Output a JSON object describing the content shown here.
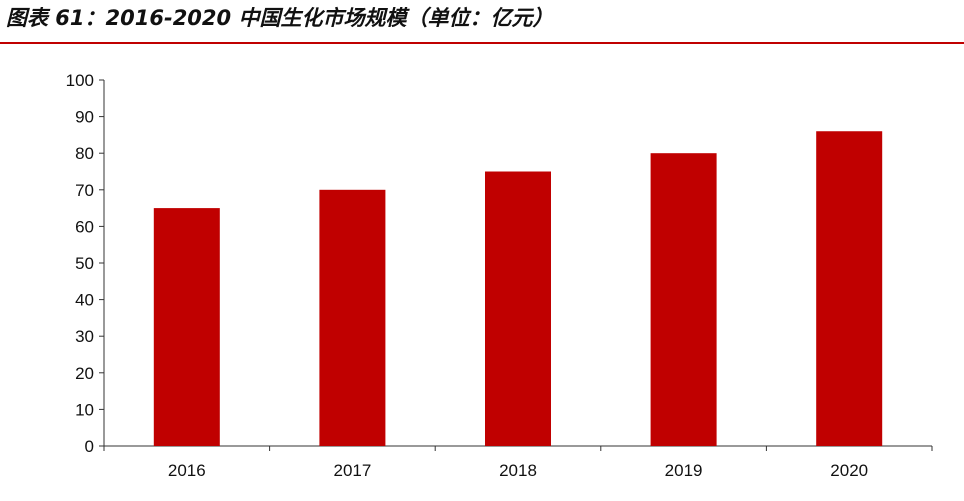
{
  "header": {
    "title": "图表 61：2016-2020 中国生化市场规模（单位：亿元）"
  },
  "colors": {
    "bar": "#c00000",
    "rule": "#c00000",
    "axis": "#333333"
  },
  "chart_data": {
    "type": "bar",
    "title": "",
    "xlabel": "",
    "ylabel": "",
    "categories": [
      "2016",
      "2017",
      "2018",
      "2019",
      "2020"
    ],
    "values": [
      65,
      70,
      75,
      80,
      86
    ],
    "ylim": [
      0,
      100
    ],
    "yticks": [
      "0",
      "10",
      "20",
      "30",
      "40",
      "50",
      "60",
      "70",
      "80",
      "90",
      "100"
    ],
    "grid": false,
    "legend": "none"
  }
}
